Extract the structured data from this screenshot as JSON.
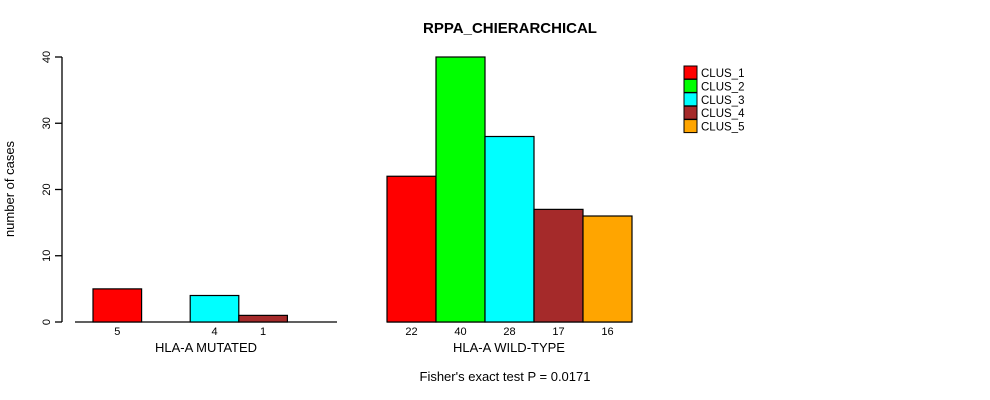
{
  "chart_data": {
    "type": "bar",
    "title": "RPPA_CHIERARCHICAL",
    "ylabel": "number of cases",
    "ylim": [
      0,
      40
    ],
    "yticks": [
      0,
      10,
      20,
      30,
      40
    ],
    "grid": false,
    "legend_position": "right",
    "series": [
      {
        "name": "CLUS_1",
        "color": "#ff0000"
      },
      {
        "name": "CLUS_2",
        "color": "#00ff00"
      },
      {
        "name": "CLUS_3",
        "color": "#00ffff"
      },
      {
        "name": "CLUS_4",
        "color": "#a52a2a"
      },
      {
        "name": "CLUS_5",
        "color": "#ffa500"
      }
    ],
    "groups": [
      {
        "label": "HLA-A MUTATED",
        "values": [
          5,
          0,
          4,
          1,
          0
        ],
        "value_labels": [
          "5",
          "",
          "4",
          "1",
          ""
        ]
      },
      {
        "label": "HLA-A WILD-TYPE",
        "values": [
          22,
          40,
          28,
          17,
          16
        ],
        "value_labels": [
          "22",
          "40",
          "28",
          "17",
          "16"
        ]
      }
    ],
    "annotation": "Fisher's exact test P = 0.0171",
    "axis_color": "#000000",
    "bar_border_color": "#000000"
  }
}
